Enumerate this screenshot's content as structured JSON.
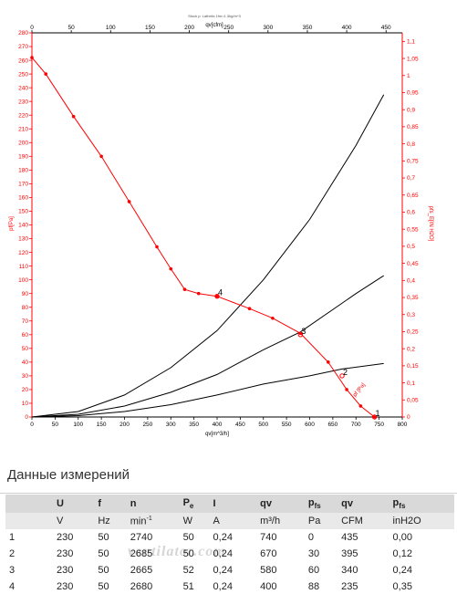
{
  "chart_data": {
    "type": "line",
    "title": "Stock p: Lathelis 1fm=1.3kg/m^3",
    "x_bottom": {
      "label": "qv[m^3/h]",
      "range": [
        0,
        800
      ],
      "ticks": [
        0,
        50,
        100,
        150,
        200,
        250,
        300,
        350,
        400,
        450,
        500,
        550,
        600,
        650,
        700,
        750,
        800
      ]
    },
    "x_top": {
      "label": "qv[cfm]",
      "range": [
        0,
        470.6
      ],
      "ticks": [
        0,
        50,
        100,
        150,
        200,
        250,
        300,
        350,
        400,
        450
      ]
    },
    "y_left": {
      "label": "pf[Pa]",
      "range": [
        0,
        280
      ],
      "ticks": [
        0,
        10,
        20,
        30,
        40,
        50,
        60,
        70,
        80,
        90,
        100,
        110,
        120,
        130,
        140,
        150,
        160,
        170,
        180,
        190,
        200,
        210,
        220,
        230,
        240,
        250,
        260,
        270,
        280
      ]
    },
    "y_right": {
      "label": "pfs_E[IN H2O]",
      "range": [
        0,
        1.125
      ],
      "ticks": [
        "0",
        "0,05",
        "0,1",
        "0,15",
        "0,2",
        "0,25",
        "0,3",
        "0,35",
        "0,4",
        "0,45",
        "0,5",
        "0,55",
        "0,6",
        "0,65",
        "0,7",
        "0,75",
        "0,8",
        "0,85",
        "0,9",
        "0,95",
        "1",
        "1,05",
        "1,1"
      ]
    },
    "grid": false,
    "fan_curve": {
      "color": "#ff0000",
      "points": [
        [
          0,
          262
        ],
        [
          30,
          250
        ],
        [
          90,
          219
        ],
        [
          150,
          190
        ],
        [
          210,
          157
        ],
        [
          270,
          124
        ],
        [
          300,
          108
        ],
        [
          330,
          93
        ],
        [
          360,
          90
        ],
        [
          400,
          88
        ],
        [
          470,
          79
        ],
        [
          520,
          72
        ],
        [
          580,
          61
        ],
        [
          640,
          40
        ],
        [
          680,
          20
        ],
        [
          710,
          8
        ],
        [
          740,
          0
        ]
      ]
    },
    "system_curves": [
      {
        "color": "#000000",
        "points": [
          [
            0,
            0
          ],
          [
            100,
            4
          ],
          [
            200,
            16
          ],
          [
            300,
            36
          ],
          [
            400,
            63
          ],
          [
            500,
            100
          ],
          [
            600,
            144
          ],
          [
            700,
            198
          ],
          [
            760,
            235
          ]
        ]
      },
      {
        "color": "#000000",
        "points": [
          [
            0,
            0
          ],
          [
            100,
            2
          ],
          [
            200,
            8
          ],
          [
            300,
            18
          ],
          [
            400,
            31
          ],
          [
            500,
            49
          ],
          [
            580,
            62
          ],
          [
            700,
            90
          ],
          [
            760,
            103
          ]
        ]
      },
      {
        "color": "#000000",
        "points": [
          [
            0,
            0
          ],
          [
            100,
            1
          ],
          [
            200,
            4
          ],
          [
            300,
            9
          ],
          [
            400,
            16
          ],
          [
            500,
            24
          ],
          [
            600,
            30
          ],
          [
            670,
            35
          ],
          [
            760,
            39
          ]
        ]
      }
    ],
    "operating_points": [
      {
        "label": "1",
        "x": 740,
        "y": 0
      },
      {
        "label": "2",
        "x": 670,
        "y": 30
      },
      {
        "label": "3",
        "x": 580,
        "y": 60
      },
      {
        "label": "4",
        "x": 400,
        "y": 88
      }
    ],
    "annotation_pf": "pf [Pa]"
  },
  "section_title": "Данные измерений",
  "watermark": "ventilator.com",
  "table": {
    "header_symbols": [
      "",
      "U",
      "f",
      "n",
      "P",
      "I",
      "qv",
      "p",
      "qv",
      "p"
    ],
    "header_subscripts": [
      "",
      "",
      "",
      "",
      "e",
      "",
      "",
      "fs",
      "",
      "fs"
    ],
    "units": [
      "",
      "V",
      "Hz",
      "min",
      "W",
      "A",
      "m³/h",
      "Pa",
      "CFM",
      "inH2O"
    ],
    "n_unit_sup": "-1",
    "rows": [
      [
        "1",
        "230",
        "50",
        "2740",
        "50",
        "0,24",
        "740",
        "0",
        "435",
        "0,00"
      ],
      [
        "2",
        "230",
        "50",
        "2685",
        "50",
        "0,24",
        "670",
        "30",
        "395",
        "0,12"
      ],
      [
        "3",
        "230",
        "50",
        "2665",
        "52",
        "0,24",
        "580",
        "60",
        "340",
        "0,24"
      ],
      [
        "4",
        "230",
        "50",
        "2680",
        "51",
        "0,24",
        "400",
        "88",
        "235",
        "0,35"
      ]
    ]
  }
}
